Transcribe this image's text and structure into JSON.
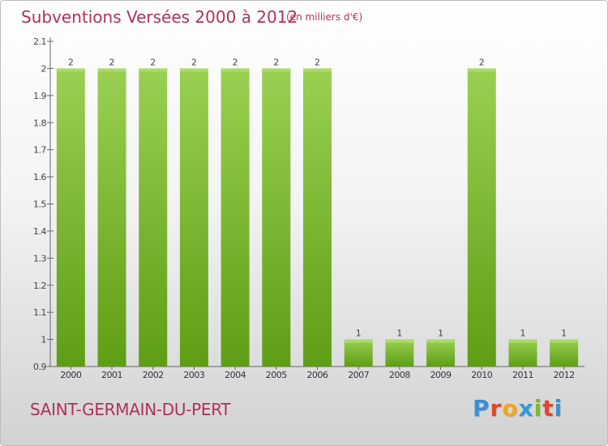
{
  "chart_data": {
    "type": "bar",
    "title": "Subventions Versées 2000 à 2012",
    "unit": "(en milliers d'€)",
    "categories": [
      "2000",
      "2001",
      "2002",
      "2003",
      "2004",
      "2005",
      "2006",
      "2007",
      "2008",
      "2009",
      "2010",
      "2011",
      "2012"
    ],
    "values": [
      2,
      2,
      2,
      2,
      2,
      2,
      2,
      1,
      1,
      1,
      2,
      1,
      1
    ],
    "ylim": [
      0.9,
      2.1
    ],
    "yticks": [
      "0.9",
      "1",
      "1.1",
      "1.2",
      "1.3",
      "1.4",
      "1.5",
      "1.6",
      "1.7",
      "1.8",
      "1.9",
      "2",
      "2.1"
    ],
    "grid": false,
    "bar_color": "#7cbf2e"
  },
  "commune": "SAINT-GERMAIN-DU-PERT",
  "logo": {
    "letters": [
      "P",
      "r",
      "o",
      "x",
      "i",
      "t",
      "i"
    ],
    "colors": [
      "#3b8fd6",
      "#e2462b",
      "#f2a516",
      "#2e9ad8",
      "#7bbb2b",
      "#e2462b",
      "#3b8fd6"
    ]
  }
}
